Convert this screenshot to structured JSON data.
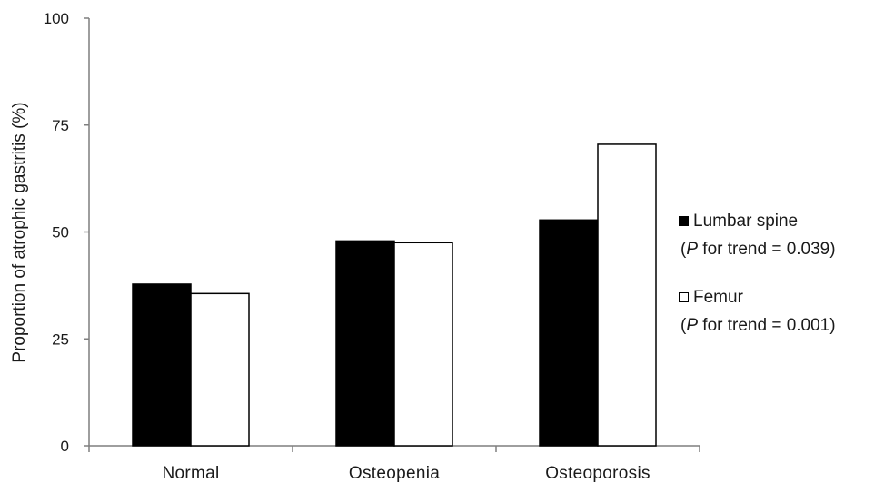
{
  "chart_data": {
    "type": "bar",
    "categories": [
      "Normal",
      "Osteopenia",
      "Osteoporosis"
    ],
    "series": [
      {
        "name": "Lumbar spine",
        "values": [
          37.8,
          47.9,
          52.8
        ],
        "color": "#000000",
        "note": {
          "open": "(",
          "p": "P",
          "rest": " for trend = 0.039)"
        }
      },
      {
        "name": "Femur",
        "values": [
          35.6,
          47.5,
          70.5
        ],
        "color": "#ffffff",
        "note": {
          "open": "(",
          "p": "P",
          "rest": " for trend = 0.001)"
        }
      }
    ],
    "ylabel": "Proportion of atrophic gastritis (%)",
    "xlabel": "",
    "ylim": [
      0,
      100
    ],
    "yticks": [
      0,
      25,
      50,
      75,
      100
    ],
    "legend_position": "right",
    "grid": false
  }
}
